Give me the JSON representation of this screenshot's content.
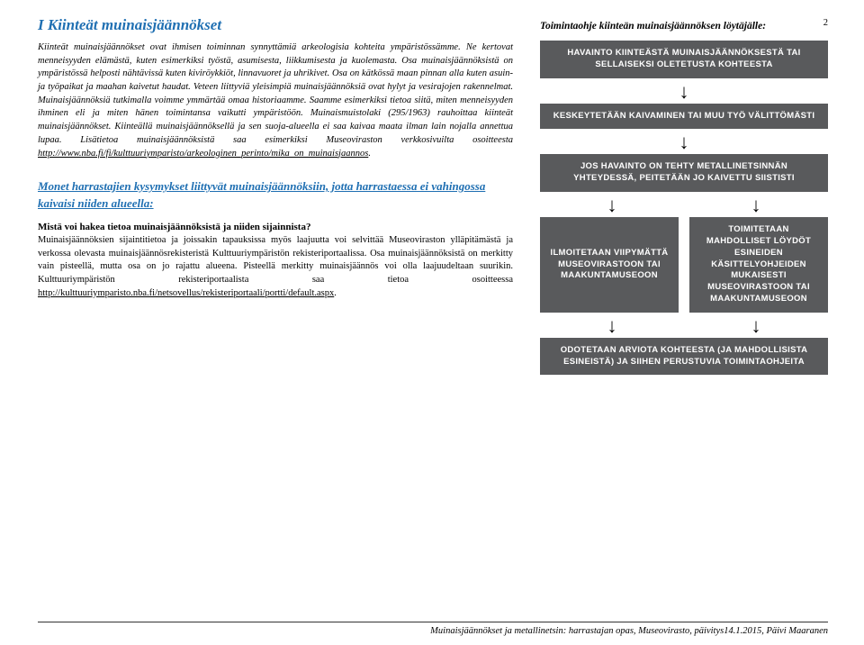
{
  "page_number": "2",
  "title": "I Kiinteät muinaisjäännökset",
  "intro_para": "Kiinteät muinaisjäännökset ovat ihmisen toiminnan synnyttämiä arkeologisia kohteita ympäristössämme. Ne kertovat menneisyyden elämästä, kuten esimerkiksi työstä, asumisesta, liikkumisesta ja kuolemasta. Osa muinaisjäännöksistä on ympäristössä helposti nähtävissä kuten kiviröykkiöt, linnavuoret ja uhrikivet. Osa on kätkössä maan pinnan alla kuten asuin- ja työpaikat ja maahan kaivetut haudat. Veteen liittyviä yleisimpiä muinaisjäännöksiä ovat hylyt ja vesirajojen rakennelmat. Muinaisjäännöksiä tutkimalla voimme ymmärtää omaa historiaamme. Saamme esimerkiksi tietoa siitä, miten menneisyyden ihminen eli ja miten hänen toimintansa vaikutti ympäristöön. Muinaismuistolaki (295/1963) rauhoittaa kiinteät muinaisjäännökset. Kiinteällä muinaisjäännöksellä ja sen suoja-alueella ei saa kaivaa maata ilman lain nojalla annettua lupaa. Lisätietoa muinaisjäännöksistä saa esimerkiksi Museoviraston verkkosivuilta osoitteesta ",
  "intro_link": "http://www.nba.fi/fi/kulttuuriymparisto/arkeologinen_perinto/mika_on_muinaisjaannos",
  "subheading": "Monet harrastajien kysymykset liittyvät muinaisjäännöksiin, jotta harrastaessa ei vahingossa kaivaisi niiden alueella:",
  "question1": "Mistä voi hakea tietoa muinaisjäännöksistä ja niiden sijainnista?",
  "answer1_a": "Muinaisjäännöksien sijaintitietoa ja joissakin tapauksissa myös laajuutta voi selvittää Museoviraston ylläpitämästä ja verkossa olevasta muinaisjäännösrekisteristä Kulttuuriympäristön rekisteriportaalissa. Osa muinaisjäännöksistä on merkitty vain pisteellä, mutta osa on jo rajattu alueena. Pisteellä merkitty muinaisjäännös voi olla laajuudeltaan suurikin. Kulttuuriympäristön rekisteriportaalista saa tietoa osoitteessa ",
  "answer1_link": "http://kulttuuriymparisto.nba.fi/netsovellus/rekisteriportaali/portti/default.aspx",
  "flow_title": "Toimintaohje kiinteän muinaisjäännöksen löytäjälle:",
  "flow": {
    "box1": "HAVAINTO KIINTEÄSTÄ MUINAISJÄÄNNÖKSESTÄ TAI SELLAISEKSI OLETETUSTA KOHTEESTA",
    "box2": "KESKEYTETÄÄN KAIVAMINEN TAI MUU TYÖ VÄLITTÖMÄSTI",
    "box3": "JOS HAVAINTO ON TEHTY METALLINETSINNÄN YHTEYDESSÄ, PEITETÄÄN JO KAIVETTU SIISTISTI",
    "box4a": "ILMOITETAAN VIIPYMÄTTÄ MUSEOVIRASTOON TAI MAAKUNTAMUSEOON",
    "box4b": "TOIMITETAAN MAHDOLLISET LÖYDÖT ESINEIDEN KÄSITTELYOHJEIDEN MUKAISESTI MUSEOVIRASTOON TAI MAAKUNTAMUSEOON",
    "box5": "ODOTETAAN ARVIOTA KOHTEESTA (JA MAHDOLLISISTA ESINEISTÄ) JA SIIHEN PERUSTUVIA TOIMINTAOHJEITA",
    "box_bg": "#595a5c",
    "box_text_color": "#ffffff"
  },
  "footer": "Muinaisjäännökset ja metallinetsin: harrastajan opas, Museovirasto, päivitys14.1.2015, Päivi Maaranen"
}
